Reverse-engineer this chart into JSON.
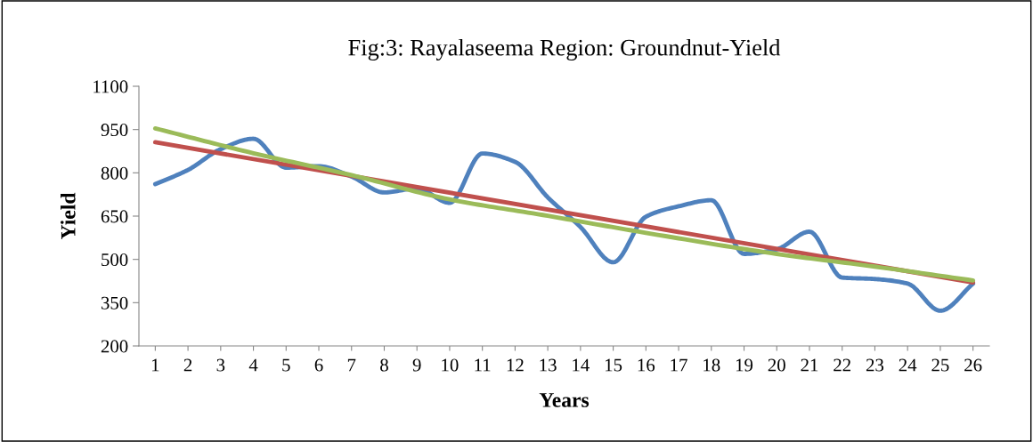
{
  "chart_data": {
    "type": "line",
    "title": "Fig:3: Rayalaseema Region: Groundnut-Yield",
    "xlabel": "Years",
    "ylabel": "Yield",
    "x": [
      1,
      2,
      3,
      4,
      5,
      6,
      7,
      8,
      9,
      10,
      11,
      12,
      13,
      14,
      15,
      16,
      17,
      18,
      19,
      20,
      21,
      22,
      23,
      24,
      25,
      26
    ],
    "xlim": [
      0.5,
      26.5
    ],
    "xticks": [
      1,
      2,
      3,
      4,
      5,
      6,
      7,
      8,
      9,
      10,
      11,
      12,
      13,
      14,
      15,
      16,
      17,
      18,
      19,
      20,
      21,
      22,
      23,
      24,
      25,
      26
    ],
    "ylim": [
      200,
      1100
    ],
    "yticks": [
      200,
      350,
      500,
      650,
      800,
      950,
      1100
    ],
    "series": [
      {
        "color": "#4f81bd",
        "values": [
          761,
          810,
          882,
          918,
          818,
          823,
          787,
          732,
          746,
          696,
          867,
          838,
          715,
          612,
          490,
          648,
          684,
          705,
          519,
          535,
          596,
          437,
          432,
          416,
          322,
          416
        ]
      },
      {
        "color": "#c0504d",
        "x": [
          1,
          26
        ],
        "values": [
          906,
          420
        ]
      },
      {
        "color": "#9bbb59",
        "x": [
          1,
          4,
          7,
          10,
          13,
          16,
          20,
          23,
          26
        ],
        "values": [
          954,
          868,
          792,
          708,
          651,
          592,
          519,
          475,
          427
        ]
      }
    ],
    "grid": false,
    "legend": false,
    "marker": "none",
    "line_style": "solid"
  }
}
